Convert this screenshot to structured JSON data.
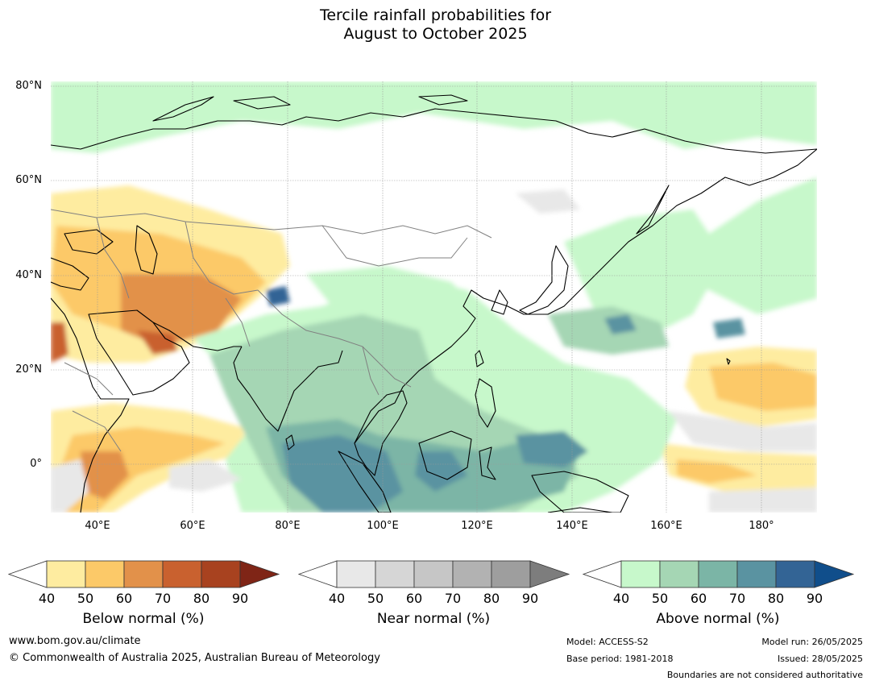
{
  "title": {
    "line1": "Tercile rainfall probabilities for",
    "line2": "August to October 2025"
  },
  "map": {
    "lat_labels": [
      "80°N",
      "60°N",
      "40°N",
      "20°N",
      "0°"
    ],
    "lon_labels": [
      "40°E",
      "60°E",
      "80°E",
      "100°E",
      "120°E",
      "140°E",
      "160°E",
      "180°"
    ],
    "lat_range": [
      -10,
      80
    ],
    "lon_range": [
      30,
      191
    ],
    "ocean_color": "#ffffff",
    "coastline_color": "#000000",
    "border_color": "#808080",
    "grid": true
  },
  "colorbars": [
    {
      "caption": "Below normal (%)",
      "ticks": [
        "40",
        "50",
        "60",
        "70",
        "80",
        "90"
      ],
      "colors": [
        "#ffffff",
        "#feeca0",
        "#fcc968",
        "#e2914a",
        "#c9612f",
        "#a8421f",
        "#7f2516"
      ]
    },
    {
      "caption": "Near normal (%)",
      "ticks": [
        "40",
        "50",
        "60",
        "70",
        "80",
        "90"
      ],
      "colors": [
        "#ffffff",
        "#e8e8e8",
        "#d6d6d6",
        "#c6c6c6",
        "#b2b2b2",
        "#9e9e9e",
        "#7d7d7d"
      ]
    },
    {
      "caption": "Above normal (%)",
      "ticks": [
        "40",
        "50",
        "60",
        "70",
        "80",
        "90"
      ],
      "colors": [
        "#ffffff",
        "#c7f8cb",
        "#a5d6b4",
        "#7bb5a6",
        "#5a93a1",
        "#336495",
        "#104e8b"
      ]
    }
  ],
  "footer": {
    "website": "www.bom.gov.au/climate",
    "copyright": "© Commonwealth of Australia 2025, Australian Bureau of Meteorology",
    "model": "Model: ACCESS-S2",
    "base_period": "Base period: 1981-2018",
    "model_run": "Model run: 26/05/2025",
    "issued": "Issued: 28/05/2025",
    "disclaimer": "Boundaries are not considered authoritative"
  }
}
